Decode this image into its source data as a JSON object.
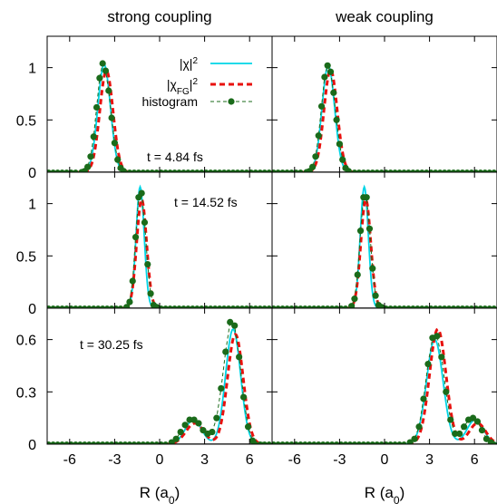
{
  "chart_data": {
    "type": "line",
    "column_titles": [
      "strong coupling",
      "weak coupling"
    ],
    "xlabel": "R (a",
    "xlabel_sub": "0",
    "xlabel_close": ")",
    "xlim": [
      -7.5,
      7.5
    ],
    "xticks": [
      -6,
      -3,
      0,
      3,
      6
    ],
    "x_tick_labels": [
      "-6",
      "-3",
      "0",
      "3",
      "6"
    ],
    "rows": [
      {
        "time_label": "t = 4.84 fs",
        "ylim": [
          0,
          1.3
        ],
        "yticks": [
          0,
          0.5,
          1
        ],
        "y_tick_labels": [
          "0",
          "0.5",
          "1"
        ]
      },
      {
        "time_label": "t = 14.52 fs",
        "ylim": [
          0,
          1.3
        ],
        "yticks": [
          0,
          0.5,
          1
        ],
        "y_tick_labels": [
          "0",
          "0.5",
          "1"
        ]
      },
      {
        "time_label": "t = 30.25 fs",
        "ylim": [
          0,
          0.78
        ],
        "yticks": [
          0,
          0.3,
          0.6
        ],
        "y_tick_labels": [
          "0",
          "0.3",
          "0.6"
        ]
      }
    ],
    "legend": {
      "placement": "top-right of top-left panel",
      "entries": [
        {
          "name": "|χ|",
          "sup": "2",
          "color": "#00d5e6",
          "style": "solid"
        },
        {
          "name": "|χ",
          "sub": "FG",
          "name_close": "|",
          "sup": "2",
          "color": "#e8110e",
          "style": "dashed"
        },
        {
          "name": "histogram",
          "color": "#1a6b1a",
          "style": "dashed-dots"
        }
      ]
    },
    "panels": [
      {
        "row": 0,
        "col": 0,
        "series": {
          "chi": {
            "peaks": [
              {
                "x0": -3.7,
                "amp": 1.03,
                "sigma": 0.42
              }
            ]
          },
          "chi_fg": {
            "peaks": [
              {
                "x0": -3.55,
                "amp": 0.97,
                "sigma": 0.44
              }
            ]
          },
          "histogram": {
            "x": [
              -5.2,
              -5,
              -4.8,
              -4.6,
              -4.4,
              -4.2,
              -4,
              -3.8,
              -3.6,
              -3.4,
              -3.2,
              -3,
              -2.8,
              -2.6,
              -2.4
            ],
            "y": [
              0,
              0.01,
              0.05,
              0.15,
              0.34,
              0.62,
              0.9,
              1.04,
              0.97,
              0.78,
              0.52,
              0.28,
              0.12,
              0.04,
              0.01
            ]
          }
        }
      },
      {
        "row": 0,
        "col": 1,
        "series": {
          "chi": {
            "peaks": [
              {
                "x0": -3.75,
                "amp": 1.02,
                "sigma": 0.42
              }
            ]
          },
          "chi_fg": {
            "peaks": [
              {
                "x0": -3.6,
                "amp": 0.98,
                "sigma": 0.44
              }
            ]
          },
          "histogram": {
            "x": [
              -5.2,
              -5,
              -4.8,
              -4.6,
              -4.4,
              -4.2,
              -4,
              -3.8,
              -3.6,
              -3.4,
              -3.2,
              -3,
              -2.8,
              -2.6,
              -2.4
            ],
            "y": [
              0,
              0.01,
              0.05,
              0.15,
              0.35,
              0.63,
              0.91,
              1.02,
              0.96,
              0.76,
              0.5,
              0.27,
              0.12,
              0.04,
              0.01
            ]
          }
        }
      },
      {
        "row": 1,
        "col": 0,
        "series": {
          "chi": {
            "peaks": [
              {
                "x0": -1.3,
                "amp": 1.16,
                "sigma": 0.27
              }
            ]
          },
          "chi_fg": {
            "peaks": [
              {
                "x0": -1.2,
                "amp": 1.04,
                "sigma": 0.33
              }
            ]
          },
          "histogram": {
            "x": [
              -2.2,
              -2,
              -1.8,
              -1.6,
              -1.4,
              -1.2,
              -1,
              -0.8,
              -0.6,
              -0.4,
              -0.2
            ],
            "y": [
              0.01,
              0.06,
              0.26,
              0.68,
              1.06,
              1.1,
              0.82,
              0.42,
              0.14,
              0.03,
              0.01
            ]
          }
        }
      },
      {
        "row": 1,
        "col": 1,
        "series": {
          "chi": {
            "peaks": [
              {
                "x0": -1.35,
                "amp": 1.16,
                "sigma": 0.27
              }
            ]
          },
          "chi_fg": {
            "peaks": [
              {
                "x0": -1.25,
                "amp": 1.04,
                "sigma": 0.33
              }
            ]
          },
          "histogram": {
            "x": [
              -2.2,
              -2,
              -1.8,
              -1.6,
              -1.4,
              -1.2,
              -1,
              -0.8,
              -0.6,
              -0.4,
              -0.2
            ],
            "y": [
              0.02,
              0.09,
              0.32,
              0.74,
              1.06,
              1.06,
              0.76,
              0.38,
              0.12,
              0.03,
              0.01
            ]
          }
        }
      },
      {
        "row": 2,
        "col": 0,
        "series": {
          "chi": {
            "peaks": [
              {
                "x0": 2.25,
                "amp": 0.14,
                "sigma": 0.55
              },
              {
                "x0": 4.9,
                "amp": 0.66,
                "sigma": 0.5
              }
            ]
          },
          "chi_fg": {
            "peaks": [
              {
                "x0": 2.35,
                "amp": 0.12,
                "sigma": 0.6
              },
              {
                "x0": 5.05,
                "amp": 0.63,
                "sigma": 0.52
              }
            ]
          },
          "histogram": {
            "x": [
              0.8,
              1.1,
              1.4,
              1.7,
              2,
              2.3,
              2.6,
              2.9,
              3.2,
              3.5,
              3.8,
              4.1,
              4.4,
              4.7,
              5,
              5.3,
              5.6,
              5.9,
              6.2
            ],
            "y": [
              0.01,
              0.03,
              0.07,
              0.11,
              0.14,
              0.14,
              0.12,
              0.08,
              0.06,
              0.07,
              0.15,
              0.32,
              0.53,
              0.7,
              0.68,
              0.5,
              0.27,
              0.1,
              0.02
            ]
          }
        }
      },
      {
        "row": 2,
        "col": 1,
        "series": {
          "chi": {
            "peaks": [
              {
                "x0": 3.35,
                "amp": 0.6,
                "sigma": 0.55
              },
              {
                "x0": 6.05,
                "amp": 0.14,
                "sigma": 0.55
              }
            ]
          },
          "chi_fg": {
            "peaks": [
              {
                "x0": 3.55,
                "amp": 0.66,
                "sigma": 0.55
              },
              {
                "x0": 6.2,
                "amp": 0.12,
                "sigma": 0.55
              }
            ]
          },
          "histogram": {
            "x": [
              1.7,
              2,
              2.3,
              2.6,
              2.9,
              3.2,
              3.5,
              3.8,
              4.1,
              4.4,
              4.7,
              5,
              5.3,
              5.6,
              5.9,
              6.2,
              6.5,
              6.8,
              7.1
            ],
            "y": [
              0.01,
              0.03,
              0.1,
              0.26,
              0.46,
              0.61,
              0.62,
              0.5,
              0.3,
              0.14,
              0.06,
              0.06,
              0.1,
              0.14,
              0.15,
              0.13,
              0.08,
              0.03,
              0.01
            ]
          }
        }
      }
    ]
  }
}
